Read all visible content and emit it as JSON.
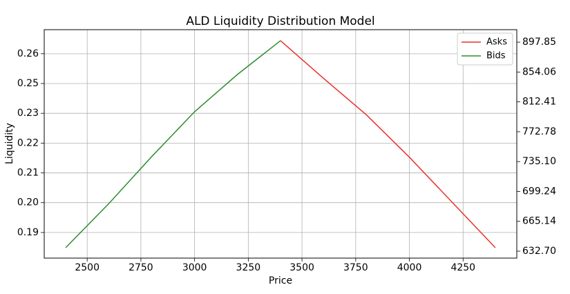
{
  "chart_data": {
    "type": "line",
    "title": "ALD Liquidity Distribution Model",
    "x_label": "Price",
    "y_label": "Liquidity",
    "series": [
      {
        "name": "Asks",
        "color": "#e8302a",
        "x": [
          3400,
          3600,
          3800,
          4000,
          4200,
          4400
        ],
        "values": [
          0.2619,
          0.2475,
          0.2335,
          0.2173,
          0.2,
          0.1827
        ]
      },
      {
        "name": "Bids",
        "color": "#2e8b2e",
        "x": [
          2400,
          2600,
          2800,
          3000,
          3200,
          3400
        ],
        "values": [
          0.1827,
          0.1995,
          0.2175,
          0.2347,
          0.249,
          0.2619
        ]
      }
    ],
    "xlim": [
      2300,
      4500
    ],
    "xticks": [
      2500,
      2750,
      3000,
      3250,
      3500,
      3750,
      4000,
      4250
    ],
    "ylim": [
      0.1787,
      0.2661
    ],
    "yticks": [
      {
        "value": 0.1885,
        "label": "0.19"
      },
      {
        "value": 0.1999,
        "label": "0.20"
      },
      {
        "value": 0.2113,
        "label": "0.21"
      },
      {
        "value": 0.2227,
        "label": "0.22"
      },
      {
        "value": 0.2341,
        "label": "0.23"
      },
      {
        "value": 0.2455,
        "label": "0.25"
      },
      {
        "value": 0.2569,
        "label": "0.26"
      }
    ],
    "y2lim": [
      625.4,
      916.8
    ],
    "y2log": true,
    "y2ticks": [
      {
        "value": 632.7,
        "label": "632.70"
      },
      {
        "value": 665.14,
        "label": "665.14"
      },
      {
        "value": 699.24,
        "label": "699.24"
      },
      {
        "value": 735.1,
        "label": "735.10"
      },
      {
        "value": 772.78,
        "label": "772.78"
      },
      {
        "value": 812.41,
        "label": "812.41"
      },
      {
        "value": 854.06,
        "label": "854.06"
      },
      {
        "value": 897.85,
        "label": "897.85"
      }
    ],
    "grid": true,
    "legend": "upper right"
  }
}
